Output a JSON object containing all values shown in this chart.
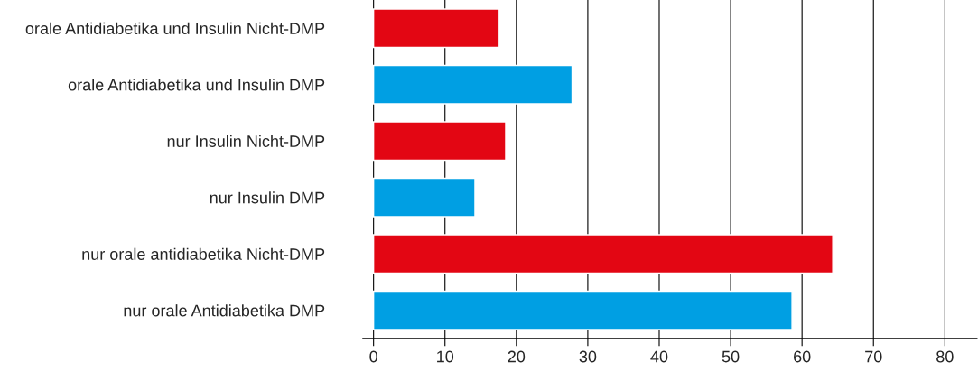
{
  "chart_data": {
    "type": "bar",
    "orientation": "horizontal",
    "categories": [
      "orale Antidiabetika und Insulin Nicht-DMP",
      "orale Antidiabetika und Insulin DMP",
      "nur Insulin Nicht-DMP",
      "nur Insulin DMP",
      "nur orale antidiabetika Nicht-DMP",
      "nur orale Antidiabetika DMP"
    ],
    "values": [
      17.6,
      27.8,
      18.5,
      14.2,
      64.3,
      58.6
    ],
    "colors": [
      "#e30613",
      "#009fe3",
      "#e30613",
      "#009fe3",
      "#e30613",
      "#009fe3"
    ],
    "xlim": [
      -1.5,
      84.5
    ],
    "xticks": [
      0,
      10,
      20,
      30,
      40,
      50,
      60,
      70,
      80
    ],
    "grid": "x",
    "legend": false
  }
}
